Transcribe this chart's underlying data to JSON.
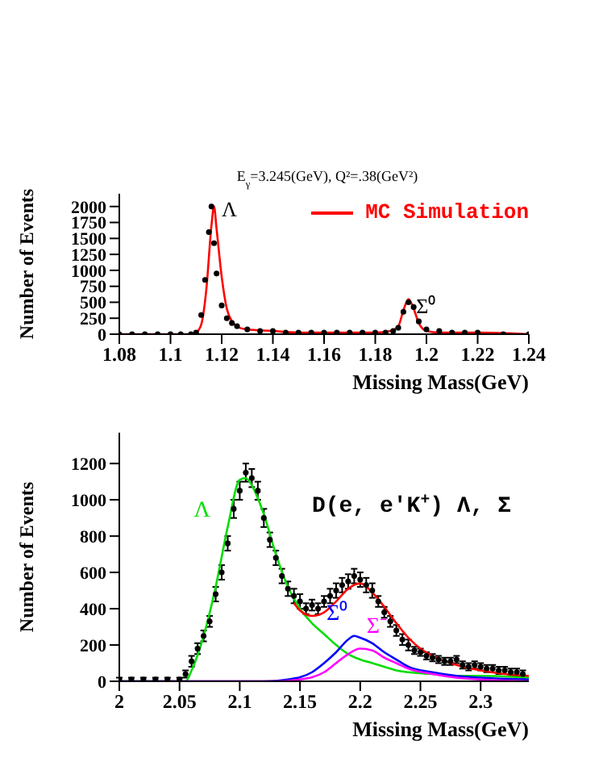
{
  "chart_data": [
    {
      "type": "scatter",
      "title": "E$_{γ}$=3.245(GeV), Q²=.38(GeV²)",
      "xlabel": "Missing Mass(GeV)",
      "ylabel": "Number of Events",
      "xlim": [
        1.08,
        1.24
      ],
      "xticks": [
        1.08,
        1.1,
        1.12,
        1.14,
        1.16,
        1.18,
        1.2,
        1.22,
        1.24
      ],
      "ylim": [
        0,
        2200
      ],
      "yticks": [
        0,
        250,
        500,
        750,
        1000,
        1250,
        1500,
        1750,
        2000
      ],
      "legend": "top right",
      "annotations": [
        {
          "text": "Λ",
          "x": 1.12,
          "y": 1900
        },
        {
          "text": "Σ⁰",
          "x": 1.196,
          "y": 600
        }
      ],
      "series": [
        {
          "marker": "circle",
          "color": "#000000",
          "x": [
            1.08,
            1.085,
            1.09,
            1.095,
            1.1,
            1.104,
            1.108,
            1.11,
            1.112,
            1.1135,
            1.115,
            1.116,
            1.117,
            1.118,
            1.12,
            1.122,
            1.124,
            1.126,
            1.13,
            1.135,
            1.14,
            1.145,
            1.15,
            1.155,
            1.16,
            1.165,
            1.17,
            1.175,
            1.18,
            1.184,
            1.187,
            1.189,
            1.191,
            1.193,
            1.195,
            1.197,
            1.2,
            1.205,
            1.21,
            1.215,
            1.22,
            1.23,
            1.24
          ],
          "values": [
            0,
            0,
            0,
            0,
            0,
            0,
            0,
            25,
            300,
            850,
            1600,
            2000,
            1425,
            950,
            450,
            250,
            175,
            125,
            75,
            50,
            50,
            25,
            25,
            25,
            25,
            25,
            25,
            25,
            25,
            25,
            50,
            100,
            350,
            500,
            425,
            200,
            75,
            50,
            25,
            25,
            25,
            0,
            0
          ]
        },
        {
          "type": "line",
          "name": "MC Simulation",
          "marker": "none",
          "color": "#ff0000",
          "x": [
            1.08,
            1.108,
            1.11,
            1.112,
            1.114,
            1.116,
            1.117,
            1.118,
            1.12,
            1.122,
            1.124,
            1.127,
            1.13,
            1.14,
            1.15,
            1.16,
            1.17,
            1.18,
            1.186,
            1.189,
            1.191,
            1.193,
            1.195,
            1.197,
            1.2,
            1.205,
            1.21,
            1.22,
            1.24
          ],
          "values": [
            0,
            0,
            25,
            150,
            700,
            1700,
            2000,
            1650,
            900,
            400,
            200,
            100,
            75,
            50,
            25,
            25,
            25,
            25,
            50,
            125,
            375,
            550,
            400,
            175,
            50,
            25,
            25,
            25,
            0
          ]
        }
      ]
    },
    {
      "type": "scatter",
      "xlabel": "Missing Mass(GeV)",
      "ylabel": "Number of Events",
      "xlim": [
        2,
        2.34
      ],
      "xticks": [
        2,
        2.05,
        2.1,
        2.15,
        2.2,
        2.25,
        2.3
      ],
      "ylim": [
        0,
        1370
      ],
      "yticks": [
        0,
        200,
        400,
        600,
        800,
        1000,
        1200
      ],
      "annotations": [
        "D(e, e'K$^{+}$) Λ, Σ"
      ],
      "series": [
        {
          "marker": "circle",
          "color": "#000000",
          "x": [
            2.0,
            2.01,
            2.02,
            2.03,
            2.04,
            2.05,
            2.055,
            2.06,
            2.065,
            2.07,
            2.075,
            2.08,
            2.085,
            2.09,
            2.095,
            2.1,
            2.105,
            2.11,
            2.115,
            2.12,
            2.125,
            2.13,
            2.135,
            2.14,
            2.145,
            2.15,
            2.155,
            2.16,
            2.165,
            2.17,
            2.175,
            2.18,
            2.185,
            2.19,
            2.195,
            2.2,
            2.205,
            2.21,
            2.215,
            2.22,
            2.225,
            2.23,
            2.235,
            2.24,
            2.245,
            2.25,
            2.255,
            2.26,
            2.265,
            2.27,
            2.275,
            2.28,
            2.285,
            2.29,
            2.295,
            2.3,
            2.305,
            2.31,
            2.315,
            2.32,
            2.325,
            2.33,
            2.335
          ],
          "values": [
            10,
            10,
            10,
            10,
            10,
            10,
            40,
            110,
            180,
            250,
            330,
            480,
            600,
            760,
            950,
            1050,
            1150,
            1120,
            1050,
            900,
            780,
            680,
            580,
            510,
            470,
            440,
            400,
            420,
            400,
            440,
            470,
            500,
            530,
            550,
            580,
            560,
            530,
            500,
            440,
            380,
            330,
            280,
            230,
            200,
            170,
            160,
            140,
            130,
            120,
            110,
            110,
            120,
            90,
            80,
            90,
            80,
            70,
            70,
            60,
            60,
            50,
            50,
            40
          ],
          "errors": [
            10,
            10,
            10,
            10,
            10,
            10,
            20,
            30,
            30,
            30,
            30,
            40,
            40,
            40,
            50,
            50,
            50,
            50,
            50,
            50,
            40,
            40,
            40,
            40,
            40,
            40,
            30,
            30,
            30,
            30,
            40,
            40,
            40,
            40,
            40,
            40,
            40,
            40,
            30,
            30,
            30,
            30,
            30,
            30,
            20,
            20,
            20,
            20,
            20,
            20,
            20,
            20,
            20,
            20,
            20,
            20,
            20,
            20,
            20,
            20,
            20,
            20,
            20
          ]
        },
        {
          "type": "line",
          "name": "Λ",
          "marker": "none",
          "color": "#00dd00",
          "x": [
            2.0,
            2.055,
            2.06,
            2.07,
            2.08,
            2.09,
            2.1,
            2.105,
            2.11,
            2.12,
            2.13,
            2.14,
            2.15,
            2.16,
            2.17,
            2.18,
            2.19,
            2.2,
            2.21,
            2.22,
            2.23,
            2.24,
            2.26,
            2.28,
            2.3,
            2.34
          ],
          "values": [
            0,
            0,
            60,
            250,
            520,
            850,
            1110,
            1120,
            1080,
            920,
            700,
            520,
            400,
            320,
            260,
            200,
            150,
            120,
            100,
            80,
            60,
            50,
            40,
            30,
            30,
            20
          ]
        },
        {
          "type": "line",
          "name": "Σ⁰",
          "marker": "none",
          "color": "#0000ff",
          "x": [
            2.0,
            2.12,
            2.14,
            2.16,
            2.17,
            2.18,
            2.19,
            2.195,
            2.2,
            2.21,
            2.22,
            2.23,
            2.24,
            2.26,
            2.28,
            2.3,
            2.34
          ],
          "values": [
            0,
            0,
            10,
            50,
            100,
            160,
            230,
            250,
            240,
            210,
            160,
            120,
            80,
            50,
            30,
            20,
            10
          ]
        },
        {
          "type": "line",
          "name": "Σ⁻",
          "marker": "none",
          "color": "#ff00ff",
          "x": [
            2.0,
            2.13,
            2.15,
            2.17,
            2.18,
            2.19,
            2.2,
            2.21,
            2.22,
            2.23,
            2.24,
            2.26,
            2.28,
            2.3,
            2.34
          ],
          "values": [
            0,
            0,
            10,
            50,
            100,
            150,
            180,
            170,
            130,
            100,
            70,
            40,
            20,
            10,
            0
          ]
        },
        {
          "type": "line",
          "marker": "none",
          "color": "#ff0000",
          "x": [
            2.145,
            2.15,
            2.16,
            2.17,
            2.18,
            2.19,
            2.2,
            2.21,
            2.22,
            2.23,
            2.24,
            2.25,
            2.26,
            2.28,
            2.3,
            2.32,
            2.34
          ],
          "values": [
            430,
            390,
            360,
            380,
            440,
            510,
            540,
            490,
            410,
            320,
            240,
            180,
            140,
            90,
            60,
            40,
            30
          ]
        }
      ]
    }
  ]
}
